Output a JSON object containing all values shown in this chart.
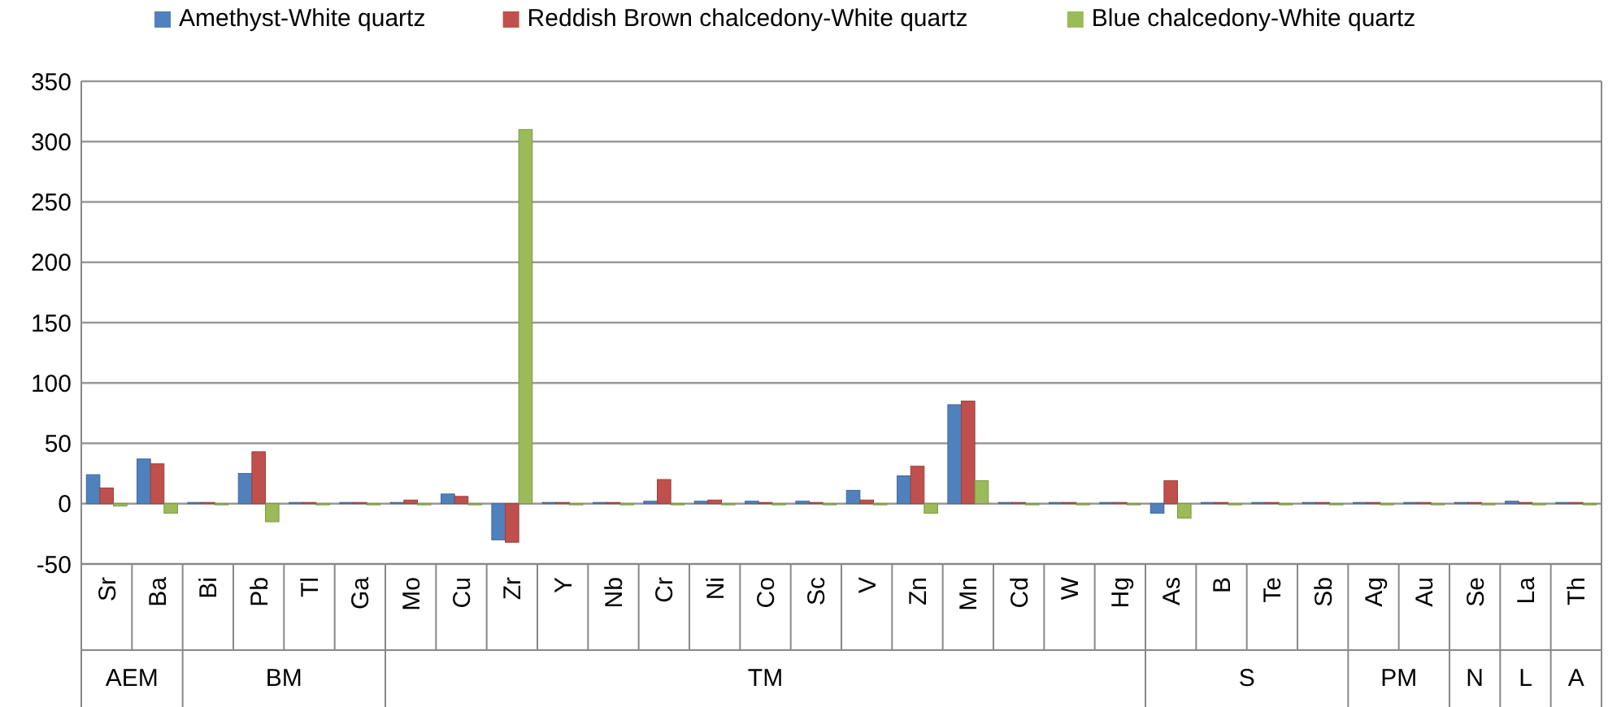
{
  "chart_data": {
    "type": "bar",
    "categories": [
      "Sr",
      "Ba",
      "Bi",
      "Pb",
      "Tl",
      "Ga",
      "Mo",
      "Cu",
      "Zr",
      "Y",
      "Nb",
      "Cr",
      "Ni",
      "Co",
      "Sc",
      "V",
      "Zn",
      "Mn",
      "Cd",
      "W",
      "Hg",
      "As",
      "B",
      "Te",
      "Sb",
      "Ag",
      "Au",
      "Se",
      "La",
      "Th"
    ],
    "series": [
      {
        "name": "Amethyst-White quartz",
        "color": "#4f81bd",
        "values": [
          24,
          37,
          1,
          25,
          1,
          1,
          1,
          8,
          -30,
          1,
          1,
          2,
          2,
          2,
          2,
          11,
          23,
          82,
          1,
          1,
          1,
          -8,
          1,
          1,
          1,
          1,
          1,
          1,
          2,
          1
        ]
      },
      {
        "name": "Reddish Brown chalcedony-White quartz",
        "color": "#c0504d",
        "values": [
          13,
          33,
          1,
          43,
          1,
          1,
          3,
          6,
          -32,
          1,
          1,
          20,
          3,
          1,
          1,
          3,
          31,
          85,
          1,
          1,
          1,
          19,
          1,
          1,
          1,
          1,
          1,
          1,
          1,
          1
        ]
      },
      {
        "name": "Blue chalcedony-White quartz",
        "color": "#9bbb59",
        "values": [
          -2,
          -8,
          -1,
          -15,
          -1,
          -1,
          -1,
          -1,
          310,
          -1,
          -1,
          -1,
          -1,
          -1,
          -1,
          -1,
          -8,
          19,
          -1,
          -1,
          -1,
          -12,
          -1,
          -1,
          -1,
          -1,
          -1,
          -1,
          -1,
          -1
        ]
      }
    ],
    "ylim": [
      -50,
      350
    ],
    "yticks": [
      -50,
      0,
      50,
      100,
      150,
      200,
      250,
      300,
      350
    ],
    "grid": "y",
    "legend": "top",
    "annotations": [
      "AEM",
      "BM",
      "TM",
      "S",
      "PM",
      "N",
      "L",
      "A"
    ]
  }
}
